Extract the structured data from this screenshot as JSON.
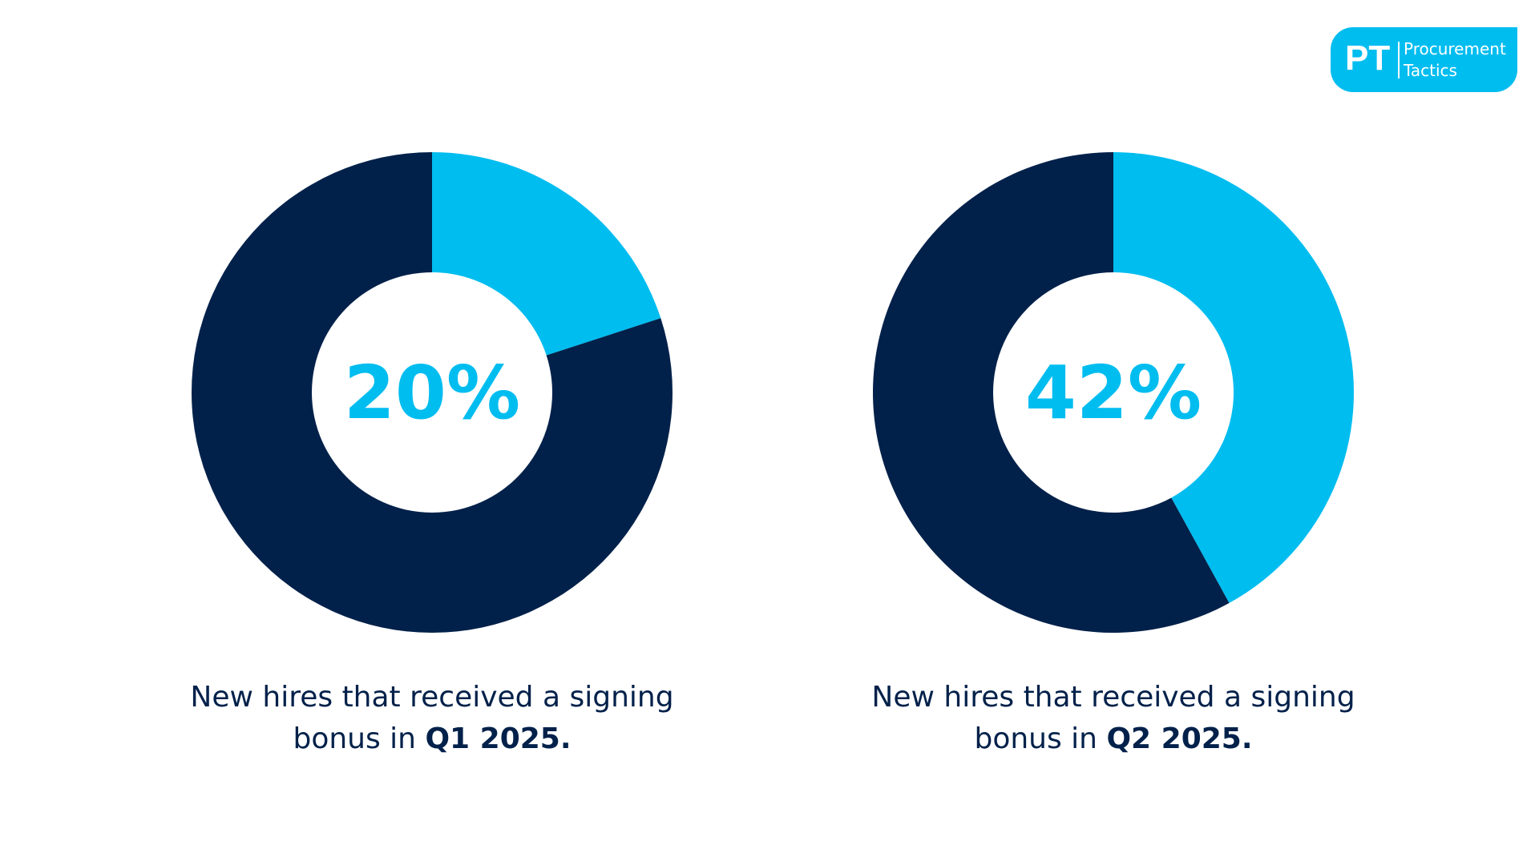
{
  "logo": {
    "mark": "PT",
    "line1": "Procurement",
    "line2": "Tactics"
  },
  "colors": {
    "highlight": "#00bdf0",
    "remainder": "#02214a"
  },
  "chart_data": [
    {
      "type": "pie",
      "variant": "donut",
      "values": [
        20,
        80
      ],
      "center_label": "20%",
      "caption_prefix": "New hires that received a signing bonus in ",
      "caption_bold": "Q1 2025."
    },
    {
      "type": "pie",
      "variant": "donut",
      "values": [
        42,
        58
      ],
      "center_label": "42%",
      "caption_prefix": "New hires that received a signing bonus in ",
      "caption_bold": "Q2 2025."
    }
  ]
}
